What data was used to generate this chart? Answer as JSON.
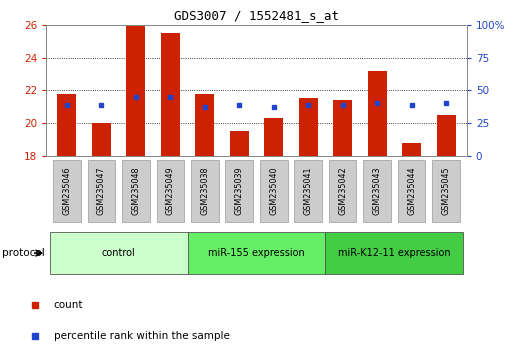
{
  "title": "GDS3007 / 1552481_s_at",
  "samples": [
    "GSM235046",
    "GSM235047",
    "GSM235048",
    "GSM235049",
    "GSM235038",
    "GSM235039",
    "GSM235040",
    "GSM235041",
    "GSM235042",
    "GSM235043",
    "GSM235044",
    "GSM235045"
  ],
  "bar_values": [
    21.8,
    20.0,
    25.9,
    25.5,
    21.8,
    19.5,
    20.3,
    21.5,
    21.4,
    23.2,
    18.8,
    20.5
  ],
  "percentile_values": [
    21.1,
    21.1,
    21.6,
    21.6,
    21.0,
    21.1,
    21.0,
    21.1,
    21.1,
    21.2,
    21.1,
    21.2
  ],
  "ylim_left": [
    18,
    26
  ],
  "ylim_right": [
    0,
    100
  ],
  "yticks_left": [
    18,
    20,
    22,
    24,
    26
  ],
  "yticks_right": [
    0,
    25,
    50,
    75,
    100
  ],
  "ytick_labels_right": [
    "0",
    "25",
    "50",
    "75",
    "100%"
  ],
  "bar_color": "#cc2200",
  "dot_color": "#2244cc",
  "bar_baseline": 18,
  "groups": [
    {
      "label": "control",
      "start": 0,
      "end": 4,
      "color": "#ccffcc"
    },
    {
      "label": "miR-155 expression",
      "start": 4,
      "end": 8,
      "color": "#66ee66"
    },
    {
      "label": "miR-K12-11 expression",
      "start": 8,
      "end": 12,
      "color": "#44cc44"
    }
  ],
  "protocol_label": "protocol",
  "legend_items": [
    {
      "label": "count",
      "color": "#cc2200"
    },
    {
      "label": "percentile rank within the sample",
      "color": "#2244cc"
    }
  ],
  "tick_color_left": "#cc2200",
  "tick_color_right": "#2244cc",
  "label_box_color": "#cccccc",
  "label_box_edge": "#999999"
}
